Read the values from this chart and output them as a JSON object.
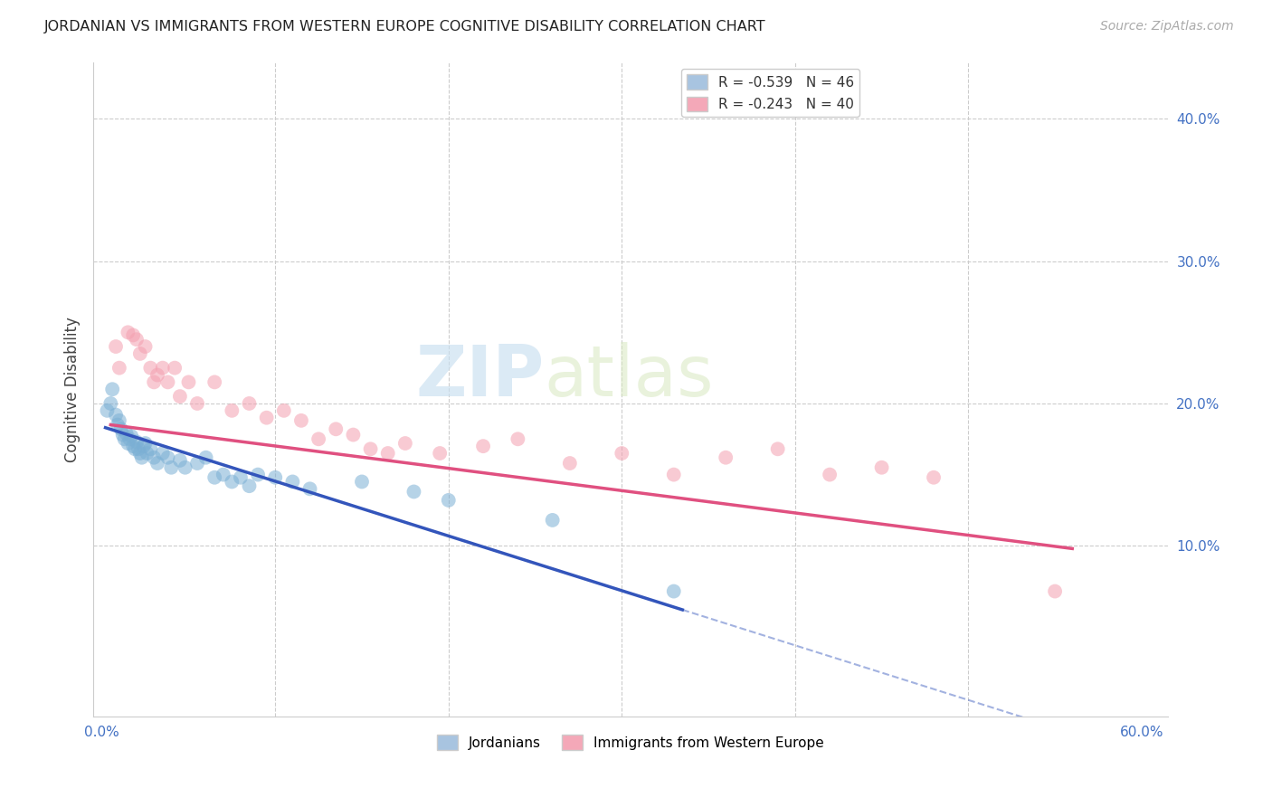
{
  "title": "JORDANIAN VS IMMIGRANTS FROM WESTERN EUROPE COGNITIVE DISABILITY CORRELATION CHART",
  "source": "Source: ZipAtlas.com",
  "ylabel": "Cognitive Disability",
  "xlim": [
    -0.005,
    0.615
  ],
  "ylim": [
    -0.02,
    0.44
  ],
  "x_ticks": [
    0.0,
    0.1,
    0.2,
    0.3,
    0.4,
    0.5,
    0.6
  ],
  "x_tick_labels": [
    "0.0%",
    "",
    "",
    "",
    "",
    "",
    "60.0%"
  ],
  "y_ticks_right": [
    0.1,
    0.2,
    0.3,
    0.4
  ],
  "y_tick_labels_right": [
    "10.0%",
    "20.0%",
    "30.0%",
    "40.0%"
  ],
  "series1_color": "#7bafd4",
  "series2_color": "#f4a0b0",
  "line1_color": "#3355bb",
  "line2_color": "#e05080",
  "watermark_zip": "ZIP",
  "watermark_atlas": "atlas",
  "jordanians_x": [
    0.003,
    0.005,
    0.006,
    0.008,
    0.009,
    0.01,
    0.011,
    0.012,
    0.013,
    0.014,
    0.015,
    0.016,
    0.017,
    0.018,
    0.019,
    0.02,
    0.021,
    0.022,
    0.023,
    0.024,
    0.025,
    0.026,
    0.028,
    0.03,
    0.032,
    0.035,
    0.038,
    0.04,
    0.045,
    0.048,
    0.055,
    0.06,
    0.065,
    0.07,
    0.075,
    0.08,
    0.085,
    0.09,
    0.1,
    0.11,
    0.12,
    0.15,
    0.18,
    0.2,
    0.26,
    0.33
  ],
  "jordanians_y": [
    0.195,
    0.2,
    0.21,
    0.192,
    0.185,
    0.188,
    0.182,
    0.178,
    0.175,
    0.179,
    0.172,
    0.175,
    0.177,
    0.17,
    0.168,
    0.173,
    0.168,
    0.165,
    0.162,
    0.17,
    0.172,
    0.165,
    0.168,
    0.162,
    0.158,
    0.165,
    0.162,
    0.155,
    0.16,
    0.155,
    0.158,
    0.162,
    0.148,
    0.15,
    0.145,
    0.148,
    0.142,
    0.15,
    0.148,
    0.145,
    0.14,
    0.145,
    0.138,
    0.132,
    0.118,
    0.068
  ],
  "immigrants_x": [
    0.008,
    0.01,
    0.015,
    0.018,
    0.02,
    0.022,
    0.025,
    0.028,
    0.03,
    0.032,
    0.035,
    0.038,
    0.042,
    0.045,
    0.05,
    0.055,
    0.065,
    0.075,
    0.085,
    0.095,
    0.105,
    0.115,
    0.125,
    0.135,
    0.145,
    0.155,
    0.165,
    0.175,
    0.195,
    0.22,
    0.24,
    0.27,
    0.3,
    0.33,
    0.36,
    0.39,
    0.42,
    0.45,
    0.48,
    0.55
  ],
  "immigrants_y": [
    0.24,
    0.225,
    0.25,
    0.248,
    0.245,
    0.235,
    0.24,
    0.225,
    0.215,
    0.22,
    0.225,
    0.215,
    0.225,
    0.205,
    0.215,
    0.2,
    0.215,
    0.195,
    0.2,
    0.19,
    0.195,
    0.188,
    0.175,
    0.182,
    0.178,
    0.168,
    0.165,
    0.172,
    0.165,
    0.17,
    0.175,
    0.158,
    0.165,
    0.15,
    0.162,
    0.168,
    0.15,
    0.155,
    0.148,
    0.068
  ],
  "line1_x_start": 0.002,
  "line1_x_end": 0.335,
  "line1_y_start": 0.183,
  "line1_y_end": 0.055,
  "line1_dash_x_end": 0.6,
  "line2_x_start": 0.005,
  "line2_x_end": 0.56,
  "line2_y_start": 0.185,
  "line2_y_end": 0.098
}
